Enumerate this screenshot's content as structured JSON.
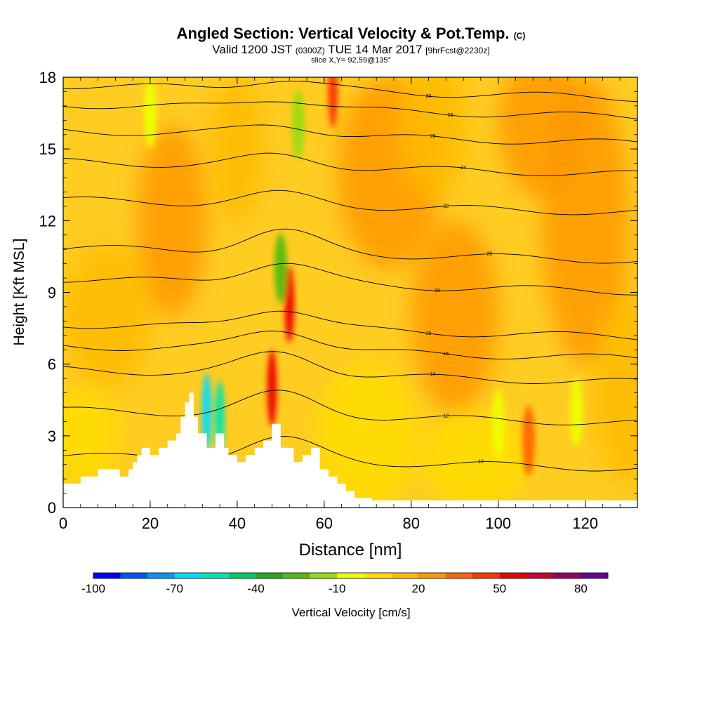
{
  "chart_data": {
    "type": "heatmap",
    "title": {
      "main": "Angled Section: Vertical Velocity & Pot.Temp.",
      "main_suffix": "(C)",
      "valid_prefix": "Valid 1200 JST",
      "valid_utc": "(0300Z)",
      "valid_date": "TUE 14 Mar 2017",
      "forecast": "[9hrFcst@2230z]",
      "slice": "slice X,Y= 92,59@135°"
    },
    "xlabel": "Distance [nm]",
    "ylabel": "Height [Kft MSL]",
    "xlim": [
      0,
      132
    ],
    "ylim": [
      0,
      18
    ],
    "x_ticks": [
      "0",
      "20",
      "40",
      "60",
      "80",
      "100",
      "120"
    ],
    "y_ticks": [
      "0",
      "3",
      "6",
      "9",
      "12",
      "15",
      "18"
    ],
    "colorbar": {
      "label": "Vertical Velocity [cm/s]",
      "tick_labels": [
        "-100",
        "-70",
        "-40",
        "-10",
        "20",
        "50",
        "80"
      ],
      "colors": [
        "#0000ff",
        "#0055ff",
        "#0099ff",
        "#00ddff",
        "#00e6b0",
        "#00cc66",
        "#22aa22",
        "#55bb11",
        "#99dd11",
        "#eeff00",
        "#ffdd00",
        "#ffbb00",
        "#ff9900",
        "#ff6600",
        "#ff3300",
        "#ee0000",
        "#cc0033",
        "#990066",
        "#660099"
      ]
    },
    "terrain_profile": {
      "x": [
        0,
        4,
        4,
        8,
        8,
        13,
        13,
        15,
        15,
        16,
        16,
        17,
        17,
        18,
        18,
        20,
        20,
        22,
        22,
        24,
        24,
        26,
        26,
        27,
        27,
        28,
        28,
        29,
        29,
        30,
        30,
        31,
        31,
        33,
        33,
        35,
        35,
        37,
        37,
        38,
        38,
        40,
        40,
        42,
        42,
        44,
        44,
        46,
        46,
        48,
        48,
        50,
        50,
        53,
        53,
        55,
        55,
        57,
        57,
        59,
        59,
        61,
        61,
        63,
        63,
        65,
        65,
        67,
        67,
        71,
        71,
        132
      ],
      "y": [
        1.0,
        1.0,
        1.3,
        1.3,
        1.6,
        1.6,
        1.3,
        1.3,
        1.6,
        1.6,
        1.9,
        1.9,
        2.2,
        2.2,
        2.5,
        2.5,
        2.2,
        2.2,
        2.5,
        2.5,
        2.8,
        2.8,
        3.1,
        3.1,
        3.8,
        3.8,
        4.4,
        4.4,
        4.8,
        4.8,
        3.8,
        3.8,
        3.1,
        3.1,
        2.5,
        2.5,
        3.1,
        3.1,
        2.5,
        2.5,
        2.2,
        2.2,
        1.9,
        1.9,
        2.2,
        2.2,
        2.5,
        2.5,
        2.8,
        2.8,
        3.5,
        3.5,
        2.5,
        2.5,
        1.9,
        1.9,
        2.2,
        2.2,
        2.5,
        2.5,
        1.6,
        1.6,
        1.3,
        1.3,
        1.0,
        1.0,
        0.7,
        0.7,
        0.4,
        0.4,
        0.3,
        0.3
      ]
    },
    "velocity_features": [
      {
        "x": 52,
        "y": 8.5,
        "value": 50
      },
      {
        "x": 48,
        "y": 5.0,
        "value": 50
      },
      {
        "x": 62,
        "y": 17.5,
        "value": 40
      },
      {
        "x": 107,
        "y": 2.8,
        "value": 30
      },
      {
        "x": 33,
        "y": 4.0,
        "value": -70
      },
      {
        "x": 36,
        "y": 3.7,
        "value": -60
      },
      {
        "x": 50,
        "y": 10.0,
        "value": -30
      },
      {
        "x": 54,
        "y": 16.0,
        "value": -20
      },
      {
        "x": 100,
        "y": 3.5,
        "value": -15
      },
      {
        "x": 118,
        "y": 4.0,
        "value": -15
      },
      {
        "x": 20,
        "y": 16.5,
        "value": -15
      }
    ],
    "theta_contours": [
      {
        "label": "10",
        "base": 1.9,
        "label_x": 96
      },
      {
        "label": "12",
        "base": 3.8,
        "label_x": 88
      },
      {
        "label": "14",
        "base": 5.5,
        "label_x": 85
      },
      {
        "label": "15",
        "base": 6.5,
        "label_x": 88
      },
      {
        "label": "16",
        "base": 7.4,
        "label_x": 84
      },
      {
        "label": "18",
        "base": 9.3,
        "label_x": 86
      },
      {
        "label": "20",
        "base": 10.6,
        "label_x": 98
      },
      {
        "label": "22",
        "base": 12.6,
        "label_x": 88
      },
      {
        "label": "24",
        "base": 14.2,
        "label_x": 92
      },
      {
        "label": "26",
        "base": 15.5,
        "label_x": 85
      },
      {
        "label": "28",
        "base": 16.6,
        "label_x": 89
      },
      {
        "label": "30",
        "base": 17.4,
        "label_x": 84
      }
    ]
  }
}
